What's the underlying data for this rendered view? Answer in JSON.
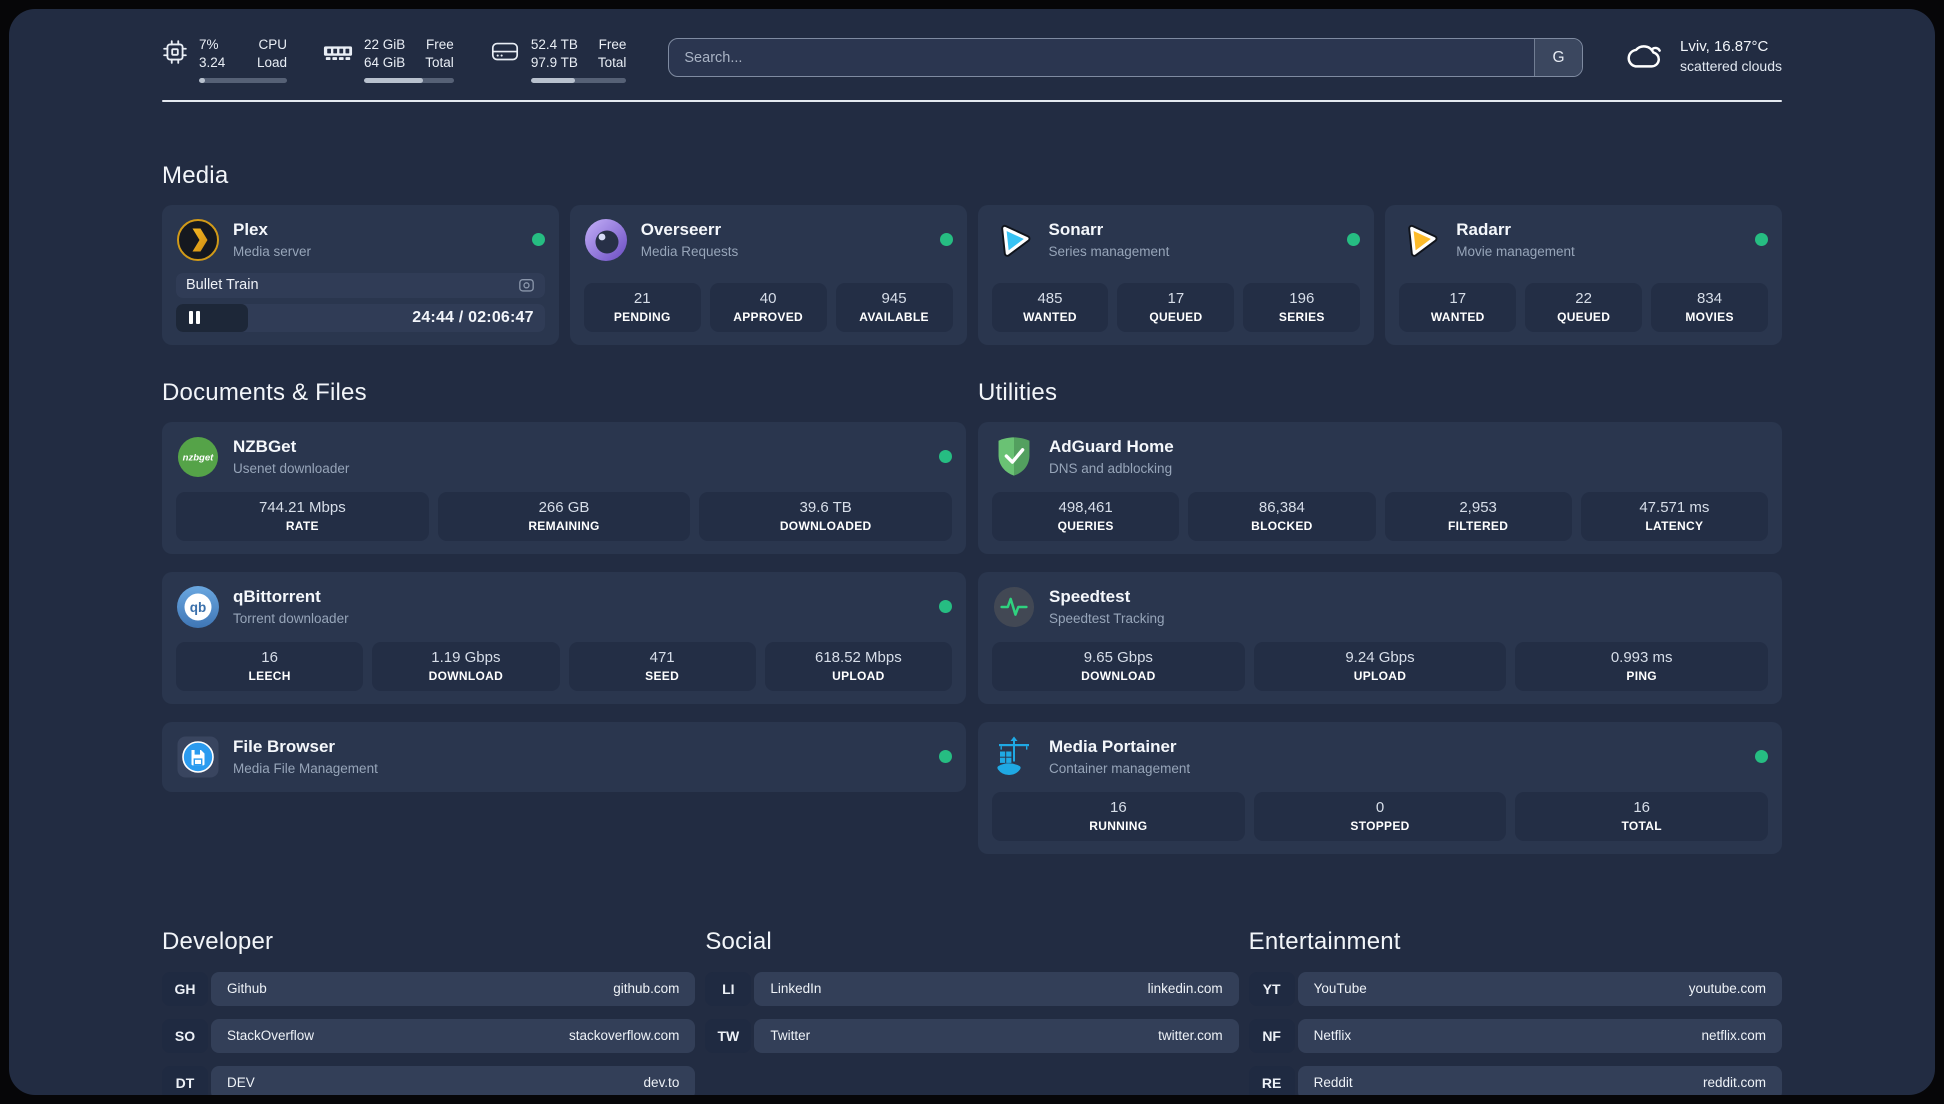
{
  "header": {
    "metrics": [
      {
        "icon": "cpu-icon",
        "value_top": "7%",
        "value_bottom": "3.24",
        "label_top": "CPU",
        "label_bottom": "Load",
        "progress_percent": 7
      },
      {
        "icon": "ram-icon",
        "value_top": "22 GiB",
        "value_bottom": "64 GiB",
        "label_top": "Free",
        "label_bottom": "Total",
        "progress_percent": 66
      },
      {
        "icon": "disk-icon",
        "value_top": "52.4 TB",
        "value_bottom": "97.9 TB",
        "label_top": "Free",
        "label_bottom": "Total",
        "progress_percent": 46
      }
    ],
    "search": {
      "placeholder": "Search...",
      "engine_button": "G"
    },
    "weather": {
      "icon": "cloud-icon",
      "location": "Lviv, 16.87°C",
      "condition": "scattered clouds"
    }
  },
  "sections": {
    "media": {
      "title": "Media",
      "plex": {
        "icon": "plex-icon",
        "name": "Plex",
        "description": "Media server",
        "online": true,
        "now_playing": {
          "title": "Bullet Train",
          "time": "24:44 / 02:06:47",
          "progress_percent": 19.5
        }
      },
      "overseerr": {
        "icon": "overseerr-icon",
        "name": "Overseerr",
        "description": "Media Requests",
        "online": true,
        "stats": [
          {
            "value": "21",
            "label": "PENDING"
          },
          {
            "value": "40",
            "label": "APPROVED"
          },
          {
            "value": "945",
            "label": "AVAILABLE"
          }
        ]
      },
      "sonarr": {
        "icon": "sonarr-icon",
        "name": "Sonarr",
        "description": "Series management",
        "online": true,
        "stats": [
          {
            "value": "485",
            "label": "WANTED"
          },
          {
            "value": "17",
            "label": "QUEUED"
          },
          {
            "value": "196",
            "label": "SERIES"
          }
        ]
      },
      "radarr": {
        "icon": "radarr-icon",
        "name": "Radarr",
        "description": "Movie management",
        "online": true,
        "stats": [
          {
            "value": "17",
            "label": "WANTED"
          },
          {
            "value": "22",
            "label": "QUEUED"
          },
          {
            "value": "834",
            "label": "MOVIES"
          }
        ]
      }
    },
    "documents": {
      "title": "Documents & Files",
      "nzbget": {
        "icon": "nzbget-icon",
        "icon_text": "nzbget",
        "name": "NZBGet",
        "description": "Usenet downloader",
        "online": true,
        "stats": [
          {
            "value": "744.21 Mbps",
            "label": "RATE"
          },
          {
            "value": "266 GB",
            "label": "REMAINING"
          },
          {
            "value": "39.6 TB",
            "label": "DOWNLOADED"
          }
        ]
      },
      "qbittorrent": {
        "icon": "qbittorrent-icon",
        "icon_text": "qb",
        "name": "qBittorrent",
        "description": "Torrent downloader",
        "online": true,
        "stats": [
          {
            "value": "16",
            "label": "LEECH"
          },
          {
            "value": "1.19 Gbps",
            "label": "DOWNLOAD"
          },
          {
            "value": "471",
            "label": "SEED"
          },
          {
            "value": "618.52 Mbps",
            "label": "UPLOAD"
          }
        ]
      },
      "filebrowser": {
        "icon": "filebrowser-icon",
        "name": "File Browser",
        "description": "Media File Management",
        "online": true
      }
    },
    "utilities": {
      "title": "Utilities",
      "adguard": {
        "icon": "adguard-icon",
        "name": "AdGuard Home",
        "description": "DNS and adblocking",
        "stats": [
          {
            "value": "498,461",
            "label": "QUERIES"
          },
          {
            "value": "86,384",
            "label": "BLOCKED"
          },
          {
            "value": "2,953",
            "label": "FILTERED"
          },
          {
            "value": "47.571 ms",
            "label": "LATENCY"
          }
        ]
      },
      "speedtest": {
        "icon": "speedtest-icon",
        "name": "Speedtest",
        "description": "Speedtest Tracking",
        "stats": [
          {
            "value": "9.65 Gbps",
            "label": "DOWNLOAD"
          },
          {
            "value": "9.24 Gbps",
            "label": "UPLOAD"
          },
          {
            "value": "0.993 ms",
            "label": "PING"
          }
        ]
      },
      "portainer": {
        "icon": "portainer-icon",
        "name": "Media Portainer",
        "description": "Container management",
        "online": true,
        "stats": [
          {
            "value": "16",
            "label": "RUNNING"
          },
          {
            "value": "0",
            "label": "STOPPED"
          },
          {
            "value": "16",
            "label": "TOTAL"
          }
        ]
      }
    },
    "developer": {
      "title": "Developer",
      "items": [
        {
          "abbr": "GH",
          "name": "Github",
          "url": "github.com"
        },
        {
          "abbr": "SO",
          "name": "StackOverflow",
          "url": "stackoverflow.com"
        },
        {
          "abbr": "DT",
          "name": "DEV",
          "url": "dev.to"
        }
      ]
    },
    "social": {
      "title": "Social",
      "items": [
        {
          "abbr": "LI",
          "name": "LinkedIn",
          "url": "linkedin.com"
        },
        {
          "abbr": "TW",
          "name": "Twitter",
          "url": "twitter.com"
        }
      ]
    },
    "entertainment": {
      "title": "Entertainment",
      "items": [
        {
          "abbr": "YT",
          "name": "YouTube",
          "url": "youtube.com"
        },
        {
          "abbr": "NF",
          "name": "Netflix",
          "url": "netflix.com"
        },
        {
          "abbr": "RE",
          "name": "Reddit",
          "url": "reddit.com"
        }
      ]
    }
  },
  "colors": {
    "background": "#222c42",
    "card": "#2a364e",
    "tile": "#232e45",
    "status_online": "#26bd82"
  }
}
